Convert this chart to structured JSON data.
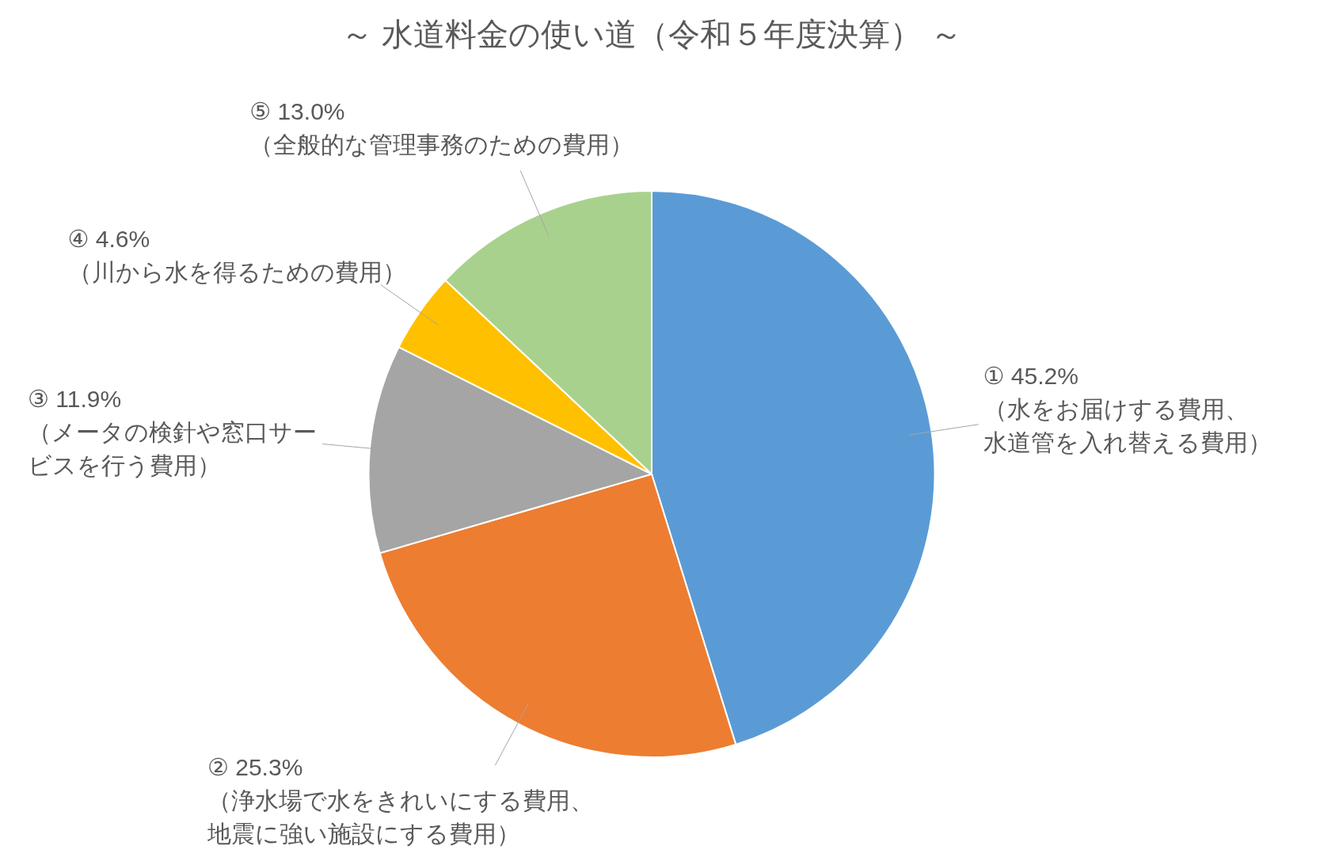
{
  "chart_data": {
    "type": "pie",
    "title": "～ 水道料金の使い道（令和５年度決算） ～",
    "categories": [
      "（水をお届けする費用、水道管を入れ替える費用）",
      "（浄水場で水をきれいにする費用、地震に強い施設にする費用）",
      "（メータの検針や窓口サービスを行う費用）",
      "（川から水を得るための費用）",
      "（全般的な管理事務のための費用）"
    ],
    "values": [
      45.2,
      25.3,
      11.9,
      4.6,
      13.0
    ],
    "value_labels": [
      "① 45.2%",
      "② 25.3%",
      "③ 11.9%",
      "④ 4.6%",
      "⑤ 13.0%"
    ],
    "colors": [
      "#5b9bd5",
      "#ed7d31",
      "#a5a5a5",
      "#ffc000",
      "#a9d18e"
    ],
    "legend": false
  }
}
